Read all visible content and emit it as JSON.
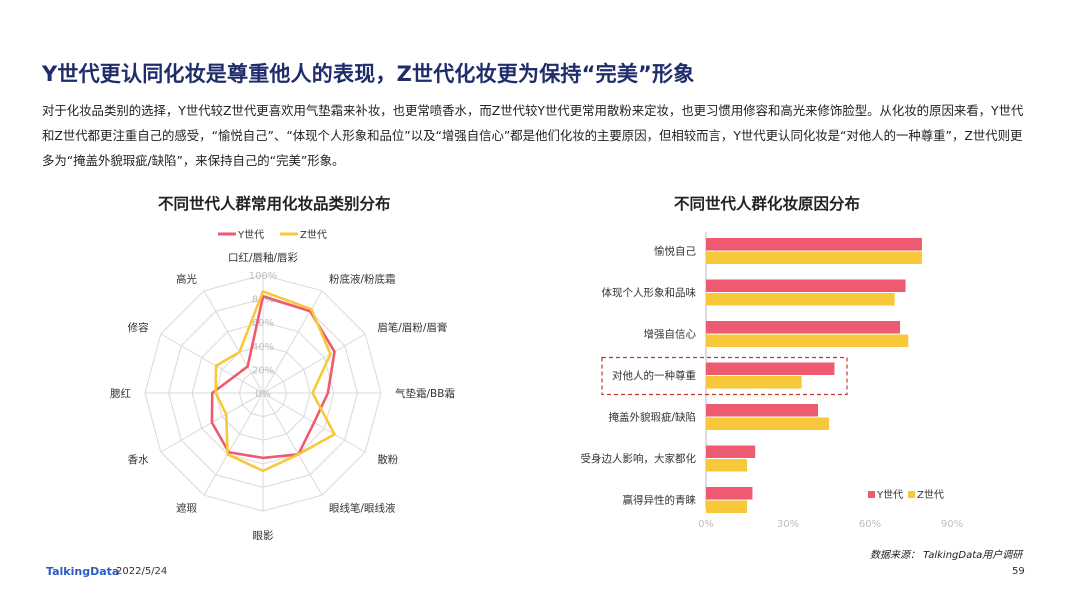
{
  "title": "Y世代更认同化妆是尊重他人的表现，Z世代化妆更为保持“完美”形象",
  "intro": "对于化妆品类别的选择，Y世代较Z世代更喜欢用气垫霜来补妆，也更常喷香水，而Z世代较Y世代更常用散粉来定妆，也更习惯用修容和高光来修饰脸型。从化妆的原因来看，Y世代和Z世代都更注重自己的感受，“愉悦自己”、“体现个人形象和品位”以及“增强自信心”都是他们化妆的主要原因，但相较而言，Y世代更认同化妆是“对他人的一种尊重”，Z世代则更多为“掩盖外貌瑕疵/缺陷”，来保持自己的“完美”形象。",
  "footer": {
    "logo": "TalkingData",
    "date": "2022/5/24",
    "page": "59",
    "source": "数据来源： TalkingData用户调研"
  },
  "colors": {
    "y": "#ee5a6f",
    "z": "#f9c83a",
    "grid": "#d9d9d9",
    "axis_text": "#bdbdbd",
    "highlight": "#c0392b"
  },
  "chart_data": [
    {
      "type": "radar",
      "title": "不同世代人群常用化妆品类别分布",
      "legend_position": "top",
      "categories": [
        "口红/唇釉/唇彩",
        "粉底液/粉底霜",
        "眉笔/眉粉/眉膏",
        "气垫霜/BB霜",
        "散粉",
        "眼线笔/眼线液",
        "眼影",
        "遮瑕",
        "香水",
        "腮红",
        "修容",
        "高光"
      ],
      "radial_ticks": [
        "0%",
        "20%",
        "40%",
        "60%",
        "80%",
        "100%"
      ],
      "rmax": 100,
      "series": [
        {
          "name": "Y世代",
          "values": [
            82,
            80,
            70,
            55,
            50,
            60,
            55,
            58,
            50,
            43,
            28,
            26
          ]
        },
        {
          "name": "Z世代",
          "values": [
            86,
            82,
            66,
            42,
            70,
            60,
            66,
            60,
            36,
            40,
            46,
            40
          ]
        }
      ]
    },
    {
      "type": "bar",
      "orientation": "horizontal",
      "title": "不同世代人群化妆原因分布",
      "legend_position": "bottom-right",
      "categories": [
        "愉悦自己",
        "体现个人形象和品味",
        "增强自信心",
        "对他人的一种尊重",
        "掩盖外貌瑕疵/缺陷",
        "受身边人影响，大家都化",
        "赢得异性的青睐"
      ],
      "highlight_category": "对他人的一种尊重",
      "xlim": [
        0,
        90
      ],
      "x_ticks": [
        "0%",
        "30%",
        "60%",
        "90%"
      ],
      "series": [
        {
          "name": "Y世代",
          "values": [
            79,
            73,
            71,
            47,
            41,
            18,
            17
          ]
        },
        {
          "name": "Z世代",
          "values": [
            79,
            69,
            74,
            35,
            45,
            15,
            15
          ]
        }
      ]
    }
  ]
}
